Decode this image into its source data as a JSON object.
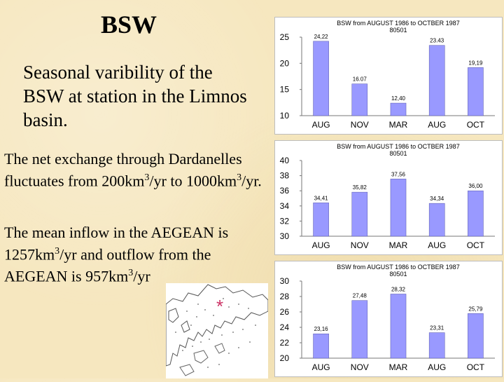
{
  "slide": {
    "title": "BSW",
    "subtitle": "Seasonal varibility of the BSW at station in the Limnos basin.",
    "para1": {
      "before": "The net exchange through Dardanelles fluctuates from 200km",
      "sup1": "3",
      "middle": "/yr to 1000km",
      "sup2": "3",
      "after": "/yr."
    },
    "para2": {
      "before": "The mean inflow in the AEGEAN is 1257km",
      "sup1": "3",
      "middle": "/yr and outflow from the AEGEAN is 957km",
      "sup2": "3",
      "after": "/yr"
    },
    "map_marker": "*"
  },
  "colors": {
    "bar_fill": "#9999ff",
    "bar_stroke": "#5555aa",
    "background": "#f6e7bf",
    "marker": "#cc3366"
  },
  "chart_data": [
    {
      "type": "bar",
      "title": "BSW from AUGUST 1986 to OCTBER 1987",
      "subtitle": "80501",
      "categories": [
        "AUG",
        "NOV",
        "MAR",
        "AUG",
        "OCT"
      ],
      "values": [
        24.22,
        16.07,
        12.4,
        23.43,
        19.19
      ],
      "value_labels": [
        "24,22",
        "16.07",
        "12,40",
        "23.43",
        "19,19"
      ],
      "yticks": [
        "10",
        "15",
        "20",
        "25"
      ],
      "ylim": [
        10,
        25
      ]
    },
    {
      "type": "bar",
      "title": "BSW from AUGUST 1986 to OCTBER 1987",
      "subtitle": "80501",
      "categories": [
        "AUG",
        "NOV",
        "MAR",
        "AUG",
        "OCT"
      ],
      "values": [
        34.41,
        35.82,
        37.56,
        34.34,
        36.0
      ],
      "value_labels": [
        "34,41",
        "35,82",
        "37,56",
        "34,34",
        "36,00"
      ],
      "yticks": [
        "30",
        "32",
        "34",
        "36",
        "38",
        "40"
      ],
      "ylim": [
        30,
        40
      ]
    },
    {
      "type": "bar",
      "title": "BSW from AUGUST 1986 to OCTBER 1987",
      "subtitle": "80501",
      "categories": [
        "AUG",
        "NOV",
        "MAR",
        "AUG",
        "OCT"
      ],
      "values": [
        23.16,
        27.48,
        28.32,
        23.31,
        25.79
      ],
      "value_labels": [
        "23,16",
        "27,48",
        "28,32",
        "23,31",
        "25,79"
      ],
      "yticks": [
        "20",
        "22",
        "24",
        "26",
        "28",
        "30"
      ],
      "ylim": [
        20,
        30
      ]
    }
  ]
}
